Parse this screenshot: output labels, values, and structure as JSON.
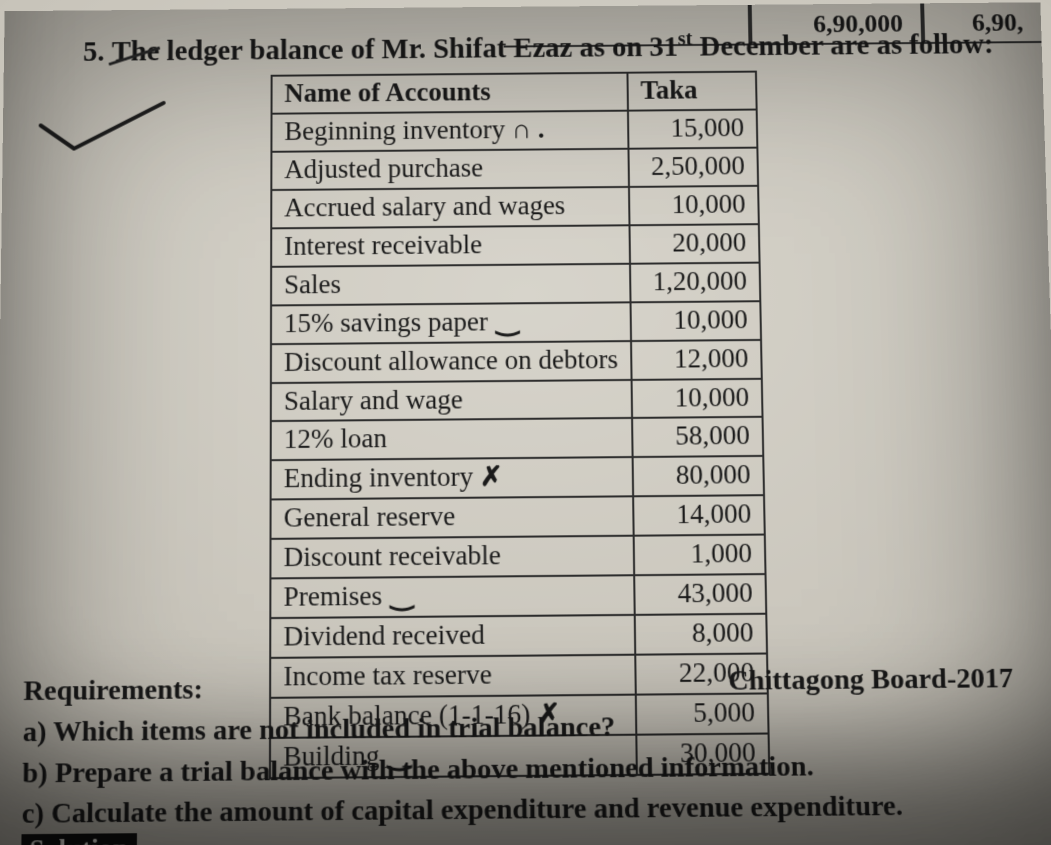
{
  "frag": {
    "val1": "6,90,000",
    "val2": "6,90,"
  },
  "question": {
    "number": "5.",
    "struck_word": "The",
    "rest_a": "ledger balance of Mr. Shifat Ezaz as on 31",
    "sup": "st",
    "rest_b": " December are as follow:"
  },
  "ledger": {
    "header_name": "Name of Accounts",
    "header_amt": "Taka",
    "rows": [
      {
        "name": "Beginning inventory",
        "mark": "curl",
        "amt": "15,000"
      },
      {
        "name": "Adjusted purchase",
        "amt": "2,50,000"
      },
      {
        "name": "Accrued salary and wages",
        "amt": "10,000"
      },
      {
        "name": "Interest receivable",
        "amt": "20,000"
      },
      {
        "name": "Sales",
        "amt": "1,20,000"
      },
      {
        "name": "15% savings paper",
        "mark": "dash",
        "amt": "10,000"
      },
      {
        "name": "Discount allowance on debtors",
        "amt": "12,000"
      },
      {
        "name": "Salary and wage",
        "amt": "10,000"
      },
      {
        "name": "12% loan",
        "amt": "58,000"
      },
      {
        "name": "Ending inventory",
        "mark": "x",
        "amt": "80,000"
      },
      {
        "name": "General reserve",
        "amt": "14,000"
      },
      {
        "name": "Discount receivable",
        "amt": "1,000"
      },
      {
        "name": "Premises",
        "mark": "dash",
        "amt": "43,000"
      },
      {
        "name": "Dividend received",
        "amt": "8,000"
      },
      {
        "name": "Income tax reserve",
        "amt": "22,000"
      },
      {
        "name": "Bank balance (1-1-16)",
        "mark": "x",
        "amt": "5,000"
      },
      {
        "name": "Building",
        "mark": "dash",
        "amt": "30,000"
      }
    ]
  },
  "board": "Chittagong Board-2017",
  "requirements": {
    "label": "Requirements:",
    "a": "a) Which items are not included in trial balance?",
    "b": "b) Prepare a trial balance with the above mentioned information.",
    "c": "c) Calculate the amount of capital expenditure and revenue expenditure."
  },
  "solution": "Solution",
  "cutoff": "a) Which it",
  "style": {
    "text_color": "#1a1a1a",
    "border_color": "#2d2d2d",
    "solution_bg": "#121212",
    "solution_fg": "#eceae3",
    "body_font_pt": 21,
    "table_font_pt": 20
  }
}
